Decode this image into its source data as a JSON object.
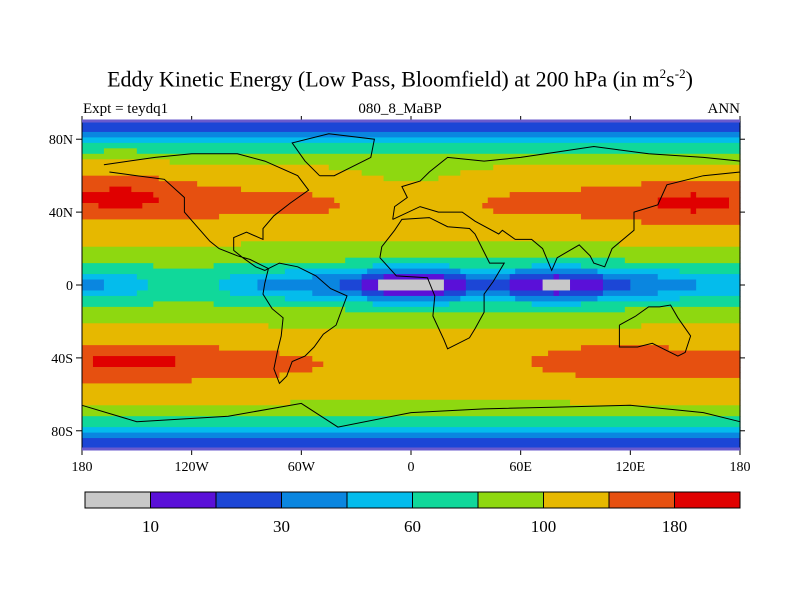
{
  "chart_data": {
    "type": "heatmap",
    "title_main": "Eddy Kinetic Energy (Low Pass, Bloomfield) at 200 hPa (in m",
    "title_sup1": "2",
    "title_mid": "s",
    "title_sup2": "-2",
    "title_end": ")",
    "subtitle_left": "Expt = teydq1",
    "subtitle_center": "080_8_MaBP",
    "subtitle_right": "ANN",
    "x_range": [
      -180,
      180
    ],
    "y_range": [
      -90,
      90
    ],
    "x_ticks": [
      {
        "value": -180,
        "label": "180"
      },
      {
        "value": -120,
        "label": "120W"
      },
      {
        "value": -60,
        "label": "60W"
      },
      {
        "value": 0,
        "label": "0"
      },
      {
        "value": 60,
        "label": "60E"
      },
      {
        "value": 120,
        "label": "120E"
      },
      {
        "value": 180,
        "label": "180"
      }
    ],
    "y_ticks": [
      {
        "value": 80,
        "label": "80N"
      },
      {
        "value": 40,
        "label": "40N"
      },
      {
        "value": 0,
        "label": "0"
      },
      {
        "value": -40,
        "label": "40S"
      },
      {
        "value": -80,
        "label": "80S"
      }
    ],
    "levels": [
      0,
      10,
      20,
      30,
      45,
      60,
      80,
      100,
      140,
      180,
      200,
      240
    ],
    "level_colors": [
      "#c8c8c8",
      "#5a10d8",
      "#1c46d6",
      "#0a86e0",
      "#04bcec",
      "#10d89a",
      "#8ed810",
      "#e6b800",
      "#e65010",
      "#e00000"
    ],
    "colorbar_labels": [
      {
        "bin": 1,
        "label": "10"
      },
      {
        "bin": 3,
        "label": "30"
      },
      {
        "bin": 5,
        "label": "60"
      },
      {
        "bin": 7,
        "label": "100"
      },
      {
        "bin": 9,
        "label": "180"
      }
    ],
    "field_description": "Zonal bands: low EKE near equator (minimum over Africa/Indian Ocean), maxima in mid-latitude storm tracks near 45N and 45S"
  },
  "colors": {
    "frame": "#6a5acd"
  }
}
